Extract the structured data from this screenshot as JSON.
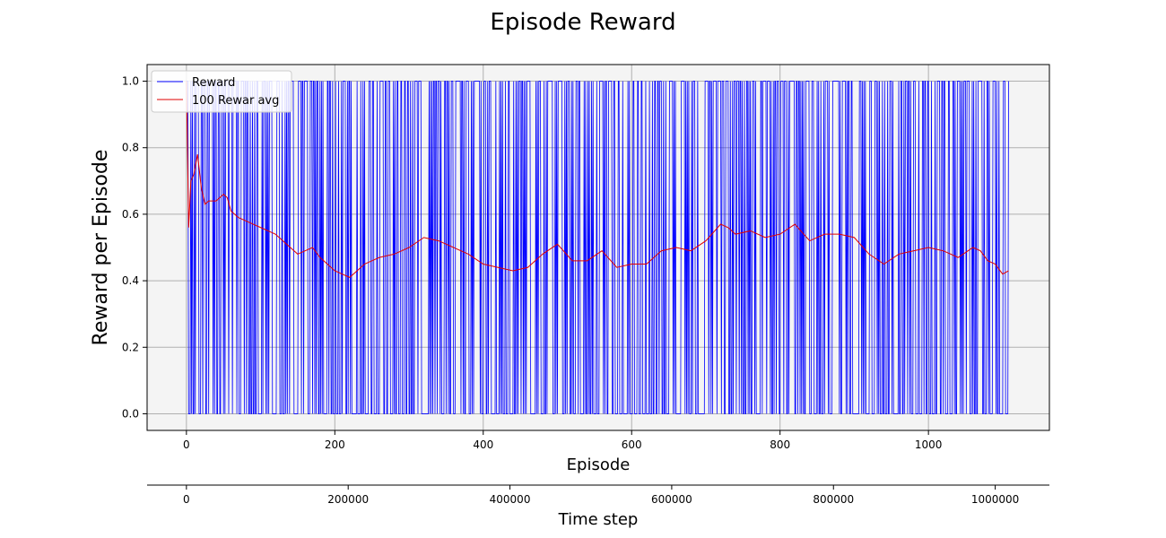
{
  "chart_data": {
    "type": "line",
    "title": "Episode Reward",
    "xlabel": "Episode",
    "ylabel": "Reward per Episode",
    "secondary_xlabel": "Time step",
    "xlim": [
      -53,
      1163
    ],
    "ylim": [
      -0.05,
      1.05
    ],
    "xticks": [
      0,
      200,
      400,
      600,
      800,
      1000
    ],
    "yticks": [
      0.0,
      0.2,
      0.4,
      0.6,
      0.8,
      1.0
    ],
    "xtick_labels": [
      "0",
      "200",
      "400",
      "600",
      "800",
      "1000"
    ],
    "ytick_labels": [
      "0.0",
      "0.2",
      "0.4",
      "0.6",
      "0.8",
      "1.0"
    ],
    "secondary_xtick_positions": [
      0,
      218,
      436,
      654,
      872,
      1090
    ],
    "secondary_xtick_labels": [
      "0",
      "200000",
      "400000",
      "600000",
      "800000",
      "1000000"
    ],
    "grid": true,
    "legend_position": "top-left",
    "background": "#f4f4f4",
    "series": [
      {
        "name": "Reward",
        "color": "#0000ff",
        "kind": "binary",
        "x_range": [
          0,
          1108
        ],
        "values": [
          0,
          1
        ],
        "description": "per-episode reward alternating between 0 and 1"
      },
      {
        "name": "100 Rewar avg",
        "color": "#e00000",
        "x": [
          0,
          3,
          6,
          10,
          15,
          20,
          25,
          30,
          40,
          50,
          55,
          60,
          70,
          80,
          90,
          100,
          110,
          120,
          130,
          140,
          150,
          160,
          170,
          180,
          190,
          200,
          210,
          220,
          230,
          240,
          250,
          260,
          280,
          300,
          320,
          340,
          360,
          380,
          400,
          420,
          440,
          460,
          480,
          500,
          520,
          540,
          560,
          580,
          600,
          620,
          640,
          660,
          680,
          700,
          720,
          730,
          740,
          760,
          780,
          800,
          820,
          840,
          860,
          880,
          900,
          920,
          940,
          960,
          980,
          1000,
          1020,
          1040,
          1060,
          1070,
          1080,
          1090,
          1100,
          1108
        ],
        "values": [
          1.0,
          0.56,
          0.7,
          0.72,
          0.78,
          0.68,
          0.63,
          0.64,
          0.64,
          0.66,
          0.65,
          0.61,
          0.59,
          0.58,
          0.57,
          0.56,
          0.55,
          0.54,
          0.52,
          0.5,
          0.48,
          0.49,
          0.5,
          0.47,
          0.45,
          0.43,
          0.42,
          0.41,
          0.43,
          0.45,
          0.46,
          0.47,
          0.48,
          0.5,
          0.53,
          0.52,
          0.5,
          0.48,
          0.45,
          0.44,
          0.43,
          0.44,
          0.48,
          0.51,
          0.46,
          0.46,
          0.49,
          0.44,
          0.45,
          0.45,
          0.49,
          0.5,
          0.49,
          0.52,
          0.57,
          0.56,
          0.54,
          0.55,
          0.53,
          0.54,
          0.57,
          0.52,
          0.54,
          0.54,
          0.53,
          0.48,
          0.45,
          0.48,
          0.49,
          0.5,
          0.49,
          0.47,
          0.5,
          0.49,
          0.46,
          0.45,
          0.42,
          0.43
        ]
      }
    ]
  }
}
